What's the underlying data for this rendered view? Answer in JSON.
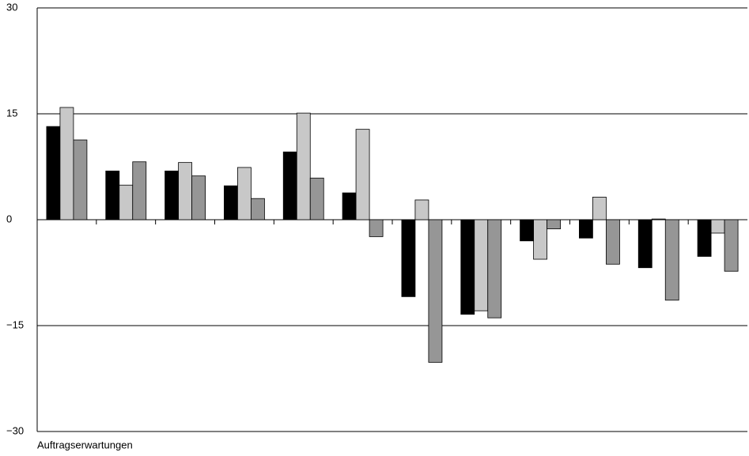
{
  "chart_data": {
    "type": "bar",
    "x_label": "Auftragserwartungen",
    "categories": [
      null,
      null,
      null,
      null,
      null,
      null,
      null,
      null,
      null,
      null,
      null,
      null
    ],
    "series": [
      {
        "color": "#000000",
        "values": [
          13.2,
          6.9,
          6.9,
          4.8,
          9.6,
          3.8,
          -10.9,
          -13.4,
          -3.0,
          -2.6,
          -6.8,
          -5.2
        ]
      },
      {
        "color": "#c8c8c8",
        "values": [
          15.9,
          4.9,
          8.1,
          7.4,
          15.1,
          12.8,
          2.8,
          -12.9,
          -5.6,
          3.2,
          0.1,
          -1.9
        ]
      },
      {
        "color": "#969696",
        "values": [
          11.3,
          8.2,
          6.2,
          3.0,
          5.9,
          -2.4,
          -20.2,
          -13.9,
          -1.3,
          -6.3,
          -11.4,
          -7.3
        ]
      }
    ],
    "ylim": [
      -30,
      30
    ],
    "yticks": [
      {
        "value": -30,
        "label": "−30"
      },
      {
        "value": -15,
        "label": "−15"
      },
      0,
      15,
      30
    ],
    "grid": true
  }
}
